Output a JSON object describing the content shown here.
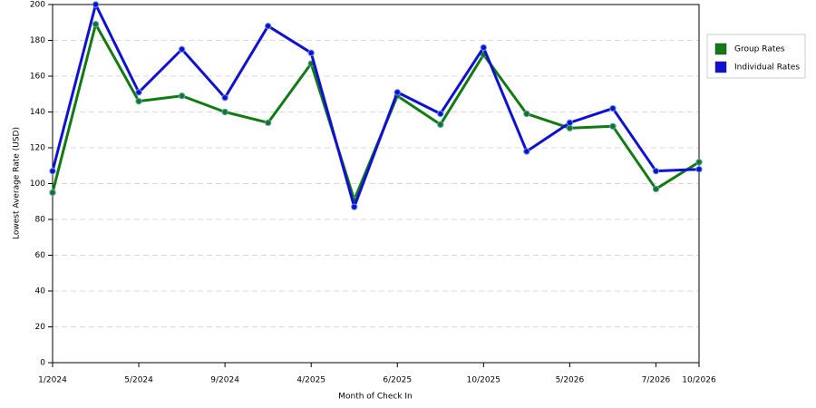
{
  "chart_data": {
    "type": "line",
    "x_label": "Month of Check In",
    "y_label": "Lowest Average Rate (USD)",
    "categories": [
      "1/2024",
      null,
      "5/2024",
      null,
      "9/2024",
      null,
      "4/2025",
      null,
      "6/2025",
      null,
      "10/2025",
      null,
      "5/2026",
      null,
      "7/2026",
      "10/2026"
    ],
    "series": [
      {
        "name": "Group Rates",
        "color": "#127a12",
        "values": [
          95,
          189,
          146,
          149,
          140,
          134,
          167,
          91,
          149,
          133,
          172,
          139,
          131,
          132,
          97,
          112
        ]
      },
      {
        "name": "Individual Rates",
        "color": "#1010d0",
        "values": [
          107,
          200,
          151,
          175,
          148,
          188,
          173,
          87,
          151,
          139,
          176,
          118,
          134,
          142,
          107,
          108
        ]
      }
    ],
    "ylim": [
      0,
      200
    ],
    "yticks": [
      0,
      20,
      40,
      60,
      80,
      100,
      120,
      140,
      160,
      180,
      200
    ],
    "grid": true,
    "legend": "right"
  }
}
